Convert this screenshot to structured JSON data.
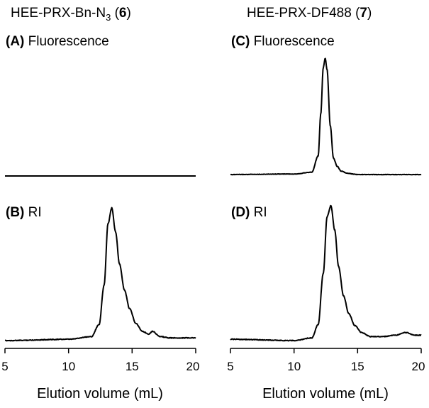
{
  "chart_data": {
    "type": "line",
    "columns": [
      {
        "title_main": "HEE-PRX-Bn-N",
        "title_sub": "3",
        "title_open": " (",
        "title_compound": "6",
        "title_close": ")"
      },
      {
        "title_main": "HEE-PRX-DF488 (",
        "title_compound": "7",
        "title_close": ")"
      }
    ],
    "xlabel": "Elution volume (mL)",
    "xlim": [
      5,
      20
    ],
    "xticks": [
      "5",
      "10",
      "15",
      "20"
    ],
    "panels": [
      {
        "id": "A",
        "letter": "(A)",
        "signal": "Fluorescence",
        "ylim": [
          0,
          1
        ],
        "series": [
          {
            "name": "Fluorescence",
            "x": [
              5,
              20
            ],
            "y": [
              0.0,
              0.0
            ]
          }
        ]
      },
      {
        "id": "B",
        "letter": "(B)",
        "signal": "RI",
        "ylim": [
          0,
          1
        ],
        "series": [
          {
            "name": "RI",
            "x": [
              5,
              10,
              11.8,
              12.4,
              12.8,
              13.1,
              13.4,
              13.7,
              14.0,
              14.4,
              14.8,
              15.3,
              15.8,
              16.3,
              16.6,
              17.2,
              18,
              20
            ],
            "y": [
              0.0,
              0.01,
              0.03,
              0.12,
              0.42,
              0.88,
              1.0,
              0.82,
              0.58,
              0.38,
              0.24,
              0.13,
              0.07,
              0.05,
              0.07,
              0.03,
              0.02,
              0.02
            ]
          }
        ]
      },
      {
        "id": "C",
        "letter": "(C)",
        "signal": "Fluorescence",
        "ylim": [
          0,
          1
        ],
        "series": [
          {
            "name": "Fluorescence",
            "x": [
              5,
              10,
              11.4,
              11.9,
              12.1,
              12.3,
              12.45,
              12.6,
              12.85,
              13.1,
              13.4,
              13.7,
              14.2,
              15,
              20
            ],
            "y": [
              0.0,
              0.005,
              0.02,
              0.16,
              0.52,
              0.92,
              1.0,
              0.9,
              0.42,
              0.14,
              0.07,
              0.03,
              0.01,
              0.0,
              0.0
            ]
          }
        ]
      },
      {
        "id": "D",
        "letter": "(D)",
        "signal": "RI",
        "ylim": [
          0,
          1
        ],
        "series": [
          {
            "name": "RI",
            "x": [
              5,
              10,
              11.4,
              11.9,
              12.3,
              12.6,
              12.9,
              13.2,
              13.5,
              13.9,
              14.3,
              14.8,
              15.3,
              16.0,
              17.0,
              18.0,
              18.8,
              19.5,
              20
            ],
            "y": [
              0.01,
              0.0,
              0.02,
              0.12,
              0.5,
              0.92,
              1.0,
              0.82,
              0.55,
              0.33,
              0.2,
              0.11,
              0.06,
              0.03,
              0.03,
              0.04,
              0.06,
              0.04,
              0.04
            ]
          }
        ]
      }
    ]
  }
}
